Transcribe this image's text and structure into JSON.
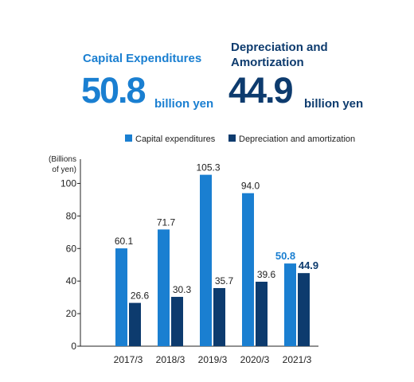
{
  "kpis": [
    {
      "label": "Capital Expenditures",
      "value": "50.8",
      "unit": "billion yen",
      "color": "#1a7fd1"
    },
    {
      "label": "Depreciation and Amortization",
      "value": "44.9",
      "unit": "billion yen",
      "color": "#0d3b6e"
    }
  ],
  "colors": {
    "capex": "#1a7fd1",
    "depreciation": "#0d3b6e",
    "text": "#222222"
  },
  "chart_data": {
    "type": "bar",
    "ylabel": "(Billions of yen)",
    "ylim": [
      0,
      110
    ],
    "yticks": [
      0,
      20,
      40,
      60,
      80,
      100
    ],
    "legend_position": "top",
    "categories": [
      "2017/3",
      "2018/3",
      "2019/3",
      "2020/3",
      "2021/3"
    ],
    "series": [
      {
        "name": "Capital expenditures",
        "values": [
          60.1,
          71.7,
          105.3,
          94.0,
          50.8
        ],
        "labels": [
          "60.1",
          "71.7",
          "105.3",
          "94.0",
          "50.8"
        ],
        "color": "#1a7fd1"
      },
      {
        "name": "Depreciation and amortization",
        "values": [
          26.6,
          30.3,
          35.7,
          39.6,
          44.9
        ],
        "labels": [
          "26.6",
          "30.3",
          "35.7",
          "39.6",
          "44.9"
        ],
        "color": "#0d3b6e"
      }
    ],
    "highlight_last": true
  }
}
